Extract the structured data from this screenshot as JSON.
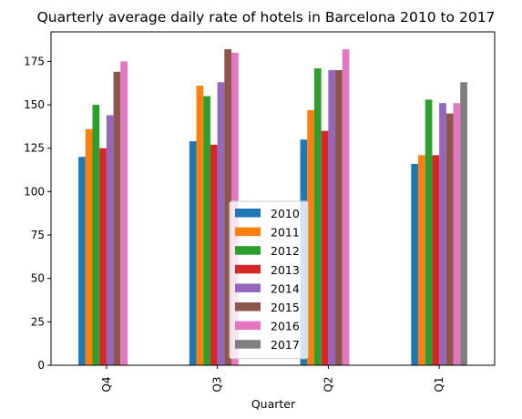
{
  "chart_data": {
    "type": "bar",
    "title": "Quarterly average daily rate of hotels in Barcelona 2010 to 2017",
    "xlabel": "Quarter",
    "ylabel": "",
    "categories": [
      "Q4",
      "Q3",
      "Q2",
      "Q1"
    ],
    "ylim": [
      0,
      192
    ],
    "yticks": [
      0,
      25,
      50,
      75,
      100,
      125,
      150,
      175
    ],
    "legend_position": "bottom-center",
    "grid": false,
    "series": [
      {
        "name": "2010",
        "color": "#1f77b4",
        "values": [
          120,
          129,
          130,
          116
        ]
      },
      {
        "name": "2011",
        "color": "#ff7f0e",
        "values": [
          136,
          161,
          147,
          121
        ]
      },
      {
        "name": "2012",
        "color": "#2ca02c",
        "values": [
          150,
          155,
          171,
          153
        ]
      },
      {
        "name": "2013",
        "color": "#d62728",
        "values": [
          125,
          127,
          135,
          121
        ]
      },
      {
        "name": "2014",
        "color": "#9467bd",
        "values": [
          144,
          163,
          170,
          151
        ]
      },
      {
        "name": "2015",
        "color": "#8c564b",
        "values": [
          169,
          182,
          170,
          145
        ]
      },
      {
        "name": "2016",
        "color": "#e377c2",
        "values": [
          175,
          180,
          182,
          151
        ]
      },
      {
        "name": "2017",
        "color": "#7f7f7f",
        "values": [
          null,
          null,
          null,
          163
        ]
      }
    ]
  }
}
